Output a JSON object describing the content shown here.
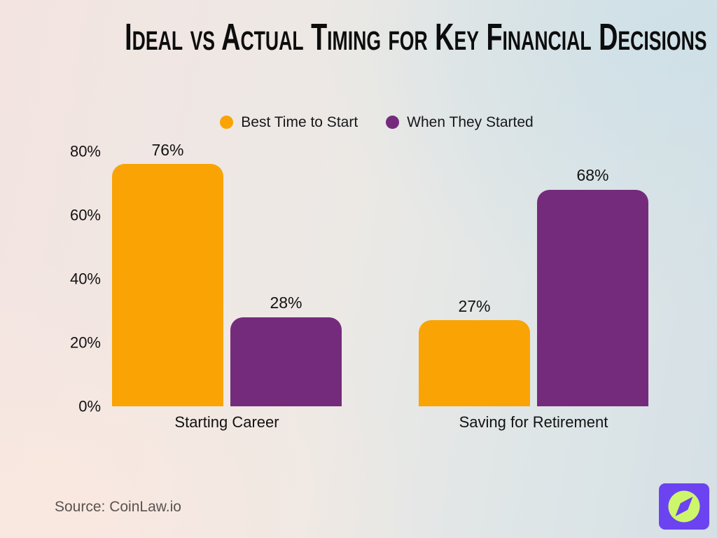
{
  "title": "Ideal vs Actual Timing for Key Financial Decisions",
  "legend": {
    "items": [
      {
        "label": "Best Time to Start",
        "color": "#F9A404"
      },
      {
        "label": "When They Started",
        "color": "#752B7C"
      }
    ]
  },
  "chart_data": {
    "type": "bar",
    "title": "Ideal vs Actual Timing for Key Financial Decisions",
    "categories": [
      "Starting Career",
      "Saving for Retirement"
    ],
    "series": [
      {
        "name": "Best Time to Start",
        "color": "#F9A404",
        "values": [
          76,
          27
        ]
      },
      {
        "name": "When They Started",
        "color": "#752B7C",
        "values": [
          28,
          68
        ]
      }
    ],
    "value_suffix": "%",
    "ylim": [
      0,
      80
    ],
    "yticks": [
      0,
      20,
      40,
      60,
      80
    ],
    "grid": false,
    "legend_position": "top",
    "xlabel": "",
    "ylabel": ""
  },
  "source": "Source: CoinLaw.io",
  "logo": {
    "icon": "compass-icon",
    "bg_color": "#6C43F0",
    "accent_color": "#CDF66B"
  }
}
